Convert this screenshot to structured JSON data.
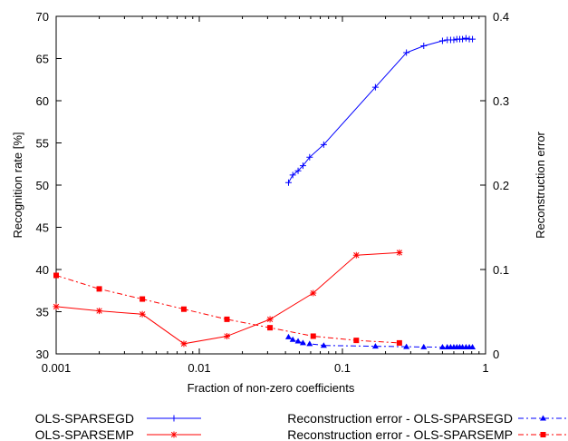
{
  "chart_data": {
    "type": "line",
    "xlabel": "Fraction of non-zero coefficients",
    "ylabel": "Recognition rate [%]",
    "y2label": "Reconstruction error",
    "xscale": "log",
    "xlim": [
      0.001,
      1
    ],
    "ylim": [
      30,
      70
    ],
    "y2lim": [
      0,
      0.4
    ],
    "grid": false,
    "legend_position": "bottom",
    "xticks": [
      {
        "value": 0.001,
        "label": "0.001"
      },
      {
        "value": 0.01,
        "label": "0.01"
      },
      {
        "value": 0.1,
        "label": "0.1"
      },
      {
        "value": 1,
        "label": "1"
      }
    ],
    "yticks": [
      {
        "value": 30,
        "label": "30"
      },
      {
        "value": 35,
        "label": "35"
      },
      {
        "value": 40,
        "label": "40"
      },
      {
        "value": 45,
        "label": "45"
      },
      {
        "value": 50,
        "label": "50"
      },
      {
        "value": 55,
        "label": "55"
      },
      {
        "value": 60,
        "label": "60"
      },
      {
        "value": 65,
        "label": "65"
      },
      {
        "value": 70,
        "label": "70"
      }
    ],
    "y2ticks": [
      {
        "value": 0,
        "label": "0"
      },
      {
        "value": 0.1,
        "label": "0.1"
      },
      {
        "value": 0.2,
        "label": "0.2"
      },
      {
        "value": 0.3,
        "label": "0.3"
      },
      {
        "value": 0.4,
        "label": "0.4"
      }
    ],
    "series": [
      {
        "name": "OLS-SPARSEGD",
        "axis": "left",
        "color": "#0000ff",
        "marker": "plus",
        "dash": "solid",
        "x": [
          0.042,
          0.045,
          0.049,
          0.053,
          0.059,
          0.074,
          0.17,
          0.28,
          0.37,
          0.5,
          0.54,
          0.57,
          0.6,
          0.63,
          0.66,
          0.69,
          0.73,
          0.77,
          0.81
        ],
        "y": [
          50.3,
          51.2,
          51.7,
          52.3,
          53.3,
          54.8,
          61.6,
          65.7,
          66.5,
          67.1,
          67.2,
          67.2,
          67.2,
          67.3,
          67.3,
          67.3,
          67.4,
          67.3,
          67.3
        ]
      },
      {
        "name": "OLS-SPARSEMP",
        "axis": "left",
        "color": "#ff0000",
        "marker": "star",
        "dash": "solid",
        "x": [
          0.001,
          0.002,
          0.004,
          0.0078,
          0.0156,
          0.0312,
          0.0625,
          0.125,
          0.25
        ],
        "y": [
          35.6,
          35.1,
          34.7,
          31.2,
          32.1,
          34.1,
          37.2,
          41.7,
          42.0
        ]
      },
      {
        "name": "Reconstruction error - OLS-SPARSEGD",
        "axis": "right",
        "color": "#0000ff",
        "marker": "triangle",
        "dash": "dashdot",
        "x": [
          0.042,
          0.045,
          0.049,
          0.053,
          0.059,
          0.074,
          0.17,
          0.28,
          0.37,
          0.5,
          0.54,
          0.57,
          0.6,
          0.63,
          0.66,
          0.69,
          0.73,
          0.77,
          0.81
        ],
        "y": [
          0.02,
          0.017,
          0.015,
          0.013,
          0.012,
          0.01,
          0.009,
          0.0085,
          0.0082,
          0.008,
          0.008,
          0.008,
          0.008,
          0.008,
          0.008,
          0.008,
          0.008,
          0.008,
          0.008
        ]
      },
      {
        "name": "Reconstruction error - OLS-SPARSEMP",
        "axis": "right",
        "color": "#ff0000",
        "marker": "square",
        "dash": "dashdot",
        "x": [
          0.001,
          0.002,
          0.004,
          0.0078,
          0.0156,
          0.0312,
          0.0625,
          0.125,
          0.25
        ],
        "y": [
          0.093,
          0.077,
          0.065,
          0.053,
          0.041,
          0.031,
          0.021,
          0.016,
          0.013
        ]
      }
    ]
  }
}
